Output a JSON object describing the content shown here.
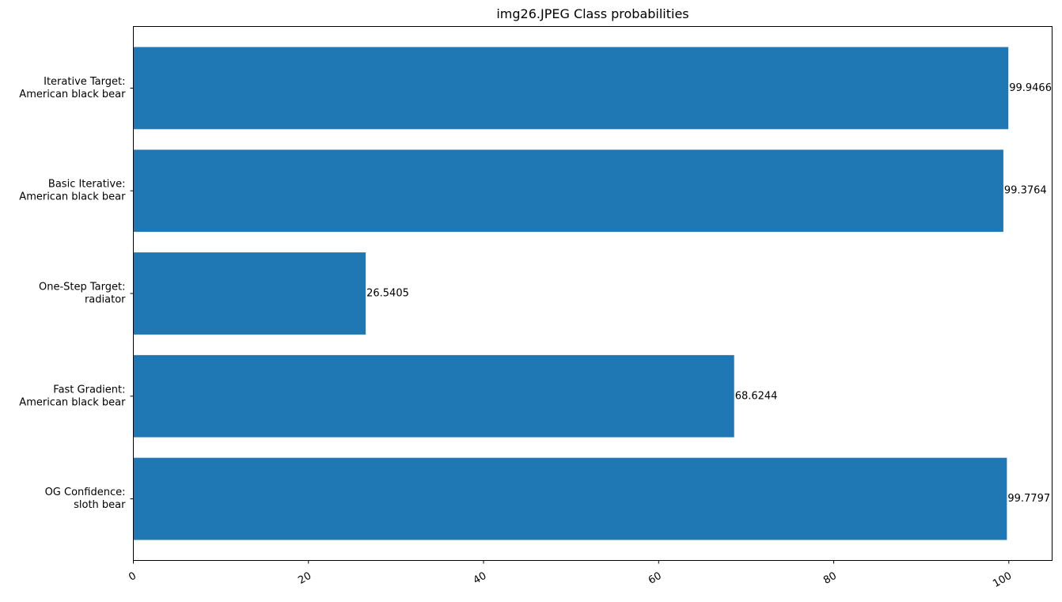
{
  "chart_data": {
    "type": "bar",
    "orientation": "horizontal",
    "title": "img26.JPEG Class probabilities",
    "xlabel": "",
    "ylabel": "",
    "categories": [
      [
        "OG Confidence:",
        "sloth bear"
      ],
      [
        "Fast Gradient:",
        "American black bear"
      ],
      [
        "One-Step Target:",
        "radiator"
      ],
      [
        "Basic Iterative:",
        "American black bear"
      ],
      [
        "Iterative Target:",
        "American black bear"
      ]
    ],
    "values": [
      99.7797,
      68.6244,
      26.5405,
      99.3764,
      99.9466
    ],
    "value_labels": [
      "99.7797",
      "68.6244",
      "26.5405",
      "99.3764",
      "99.9466"
    ],
    "xlim": [
      0,
      104.944
    ],
    "xticks": [
      0,
      20,
      40,
      60,
      80,
      100
    ],
    "xtick_labels": [
      "0",
      "20",
      "40",
      "60",
      "80",
      "100"
    ],
    "xtick_rotation": 30,
    "grid": false,
    "legend": "none",
    "bar_color": "#1f77b4"
  }
}
